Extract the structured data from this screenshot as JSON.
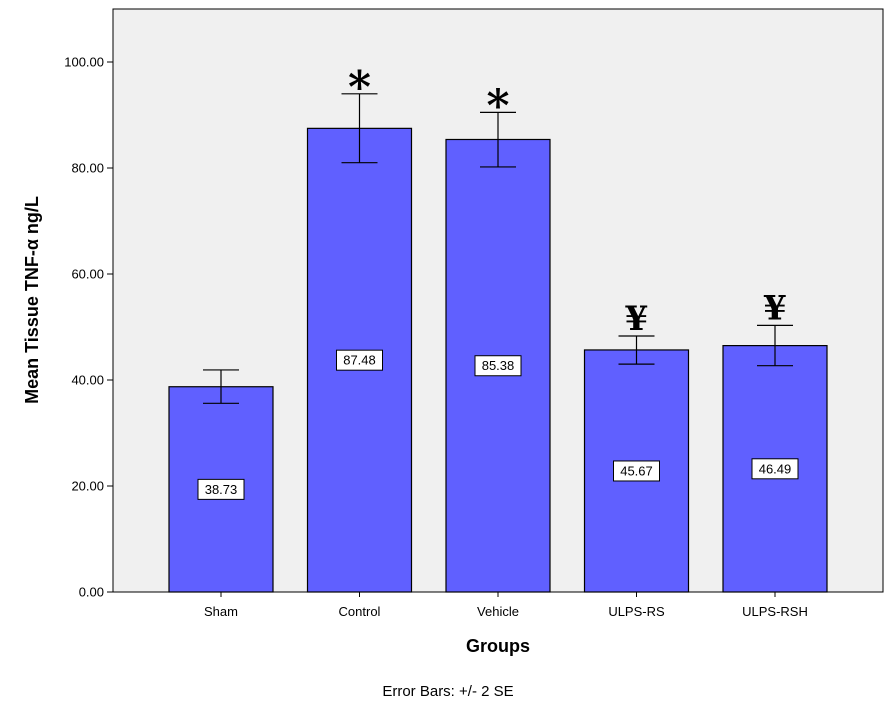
{
  "chart_data": {
    "type": "bar",
    "categories": [
      "Sham",
      "Control",
      "Vehicle",
      "ULPS-RS",
      "ULPS-RSH"
    ],
    "values": [
      38.73,
      87.48,
      85.38,
      45.67,
      46.49
    ],
    "value_labels": [
      "38.73",
      "87.48",
      "85.38",
      "45.67",
      "46.49"
    ],
    "error_low": [
      35.6,
      81.0,
      80.2,
      43.0,
      42.7
    ],
    "error_high": [
      41.9,
      94.0,
      90.5,
      48.3,
      50.3
    ],
    "markers": [
      "",
      "*",
      "*",
      "¥",
      "¥"
    ],
    "xlabel": "Groups",
    "ylabel": "Mean Tissue TNF-α ng/L",
    "ylim": [
      0,
      110
    ],
    "yticks": [
      0,
      20,
      40,
      60,
      80,
      100
    ],
    "ytick_labels": [
      "0.00",
      "20.00",
      "40.00",
      "60.00",
      "80.00",
      "100.00"
    ],
    "footnote": "Error Bars: +/- 2 SE",
    "grid": false,
    "colors": {
      "bar": "#6060ff",
      "plot_bg": "#f0f0f0",
      "outline": "#000000"
    }
  }
}
